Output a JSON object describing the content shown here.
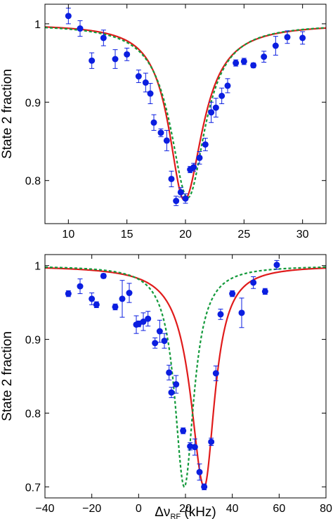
{
  "chart_data": [
    {
      "type": "scatter",
      "title": "",
      "xlabel": "",
      "ylabel": "State 2 fraction",
      "xlim": [
        8,
        32
      ],
      "ylim": [
        0.745,
        1.025
      ],
      "xticks": [
        10,
        15,
        20,
        25,
        30
      ],
      "xtick_labels": [
        "10",
        "15",
        "20",
        "25",
        "30"
      ],
      "yticks": [
        0.8,
        0.9,
        1.0
      ],
      "ytick_labels": [
        "0.8",
        "0.9",
        "1"
      ],
      "grid": false,
      "legend": "none",
      "series": [
        {
          "kind": "points",
          "color": "#0b1ee0",
          "x": [
            10,
            11,
            12,
            13,
            14,
            15,
            16,
            16.6,
            17,
            17.3,
            17.9,
            18.4,
            18.8,
            19.2,
            19.6,
            20,
            20.4,
            20.7,
            21.2,
            21.7,
            22.2,
            22.6,
            23.1,
            23.6,
            24.3,
            25,
            25.8,
            26.7,
            27.7,
            28.7,
            30
          ],
          "y": [
            1.01,
            0.994,
            0.953,
            0.982,
            0.955,
            0.961,
            0.933,
            0.925,
            0.911,
            0.874,
            0.861,
            0.851,
            0.802,
            0.774,
            0.785,
            0.777,
            0.814,
            0.817,
            0.829,
            0.846,
            0.887,
            0.893,
            0.908,
            0.921,
            0.95,
            0.952,
            0.947,
            0.958,
            0.972,
            0.983,
            0.982
          ],
          "yerr": [
            0.01,
            0.01,
            0.01,
            0.01,
            0.012,
            0.008,
            0.008,
            0.012,
            0.013,
            0.01,
            0.005,
            0.013,
            0.01,
            0.006,
            0.006,
            0.006,
            0.004,
            0.005,
            0.008,
            0.008,
            0.013,
            0.012,
            0.01,
            0.009,
            0.004,
            0.004,
            0.003,
            0.007,
            0.012,
            0.008,
            0.008
          ]
        },
        {
          "kind": "fit",
          "style": "solid",
          "color": "#e01b1b",
          "model": "asym_lorentzian",
          "center": 19.9,
          "depth": 0.225,
          "width_left": 1.6,
          "width_right": 1.9
        },
        {
          "kind": "fit",
          "style": "dashed",
          "color": "#149a3c",
          "model": "lorentzian",
          "center": 20.2,
          "depth": 0.222,
          "width_left": 1.8,
          "width_right": 1.8
        }
      ]
    },
    {
      "type": "scatter",
      "title": "",
      "xlabel": "Δν_RF (kHz)",
      "xlabel_main": "Δν",
      "xlabel_sub": "RF",
      "xlabel_units": " (kHz)",
      "ylabel": "State 2 fraction",
      "xlim": [
        -40,
        80
      ],
      "ylim": [
        0.685,
        1.015
      ],
      "xticks": [
        -40,
        -20,
        0,
        20,
        40,
        60,
        80
      ],
      "xtick_labels": [
        "−40",
        "−20",
        "0",
        "20",
        "40",
        "60",
        "80"
      ],
      "yticks": [
        0.7,
        0.8,
        0.9,
        1.0
      ],
      "ytick_labels": [
        "0.7",
        "0.8",
        "0.9",
        "1"
      ],
      "grid": false,
      "legend": "none",
      "series": [
        {
          "kind": "points",
          "color": "#0b1ee0",
          "x": [
            -30,
            -25,
            -20,
            -18,
            -15,
            -10,
            -7,
            -4,
            -1,
            0,
            2,
            4,
            7,
            9,
            11,
            13,
            14,
            16,
            19,
            22,
            24,
            26,
            28,
            31,
            33,
            35,
            40,
            44,
            49,
            54,
            59
          ],
          "y": [
            0.962,
            0.972,
            0.955,
            0.947,
            0.986,
            0.944,
            0.955,
            0.963,
            0.92,
            0.921,
            0.924,
            0.928,
            0.895,
            0.911,
            0.898,
            0.855,
            0.828,
            0.839,
            0.776,
            0.755,
            0.754,
            0.72,
            0.7,
            0.761,
            0.854,
            0.934,
            0.962,
            0.936,
            0.977,
            0.965,
            1.001
          ],
          "yerr": [
            0.004,
            0.01,
            0.008,
            0.004,
            0.003,
            0.004,
            0.025,
            0.013,
            0.012,
            0.004,
            0.012,
            0.01,
            0.007,
            0.015,
            0.01,
            0.01,
            0.007,
            0.012,
            0.004,
            0.005,
            0.011,
            0.011,
            0.004,
            0.005,
            0.01,
            0.007,
            0.004,
            0.02,
            0.008,
            0.004,
            0.006
          ]
        },
        {
          "kind": "fit",
          "style": "solid",
          "color": "#e01b1b",
          "model": "asym_lorentzian",
          "center": 28,
          "depth": 0.3,
          "width_left": 7.0,
          "width_right": 5.5
        },
        {
          "kind": "fit",
          "style": "dashed",
          "color": "#149a3c",
          "model": "lorentzian",
          "center": 19.5,
          "depth": 0.3,
          "width_left": 5.0,
          "width_right": 5.0
        }
      ]
    }
  ]
}
